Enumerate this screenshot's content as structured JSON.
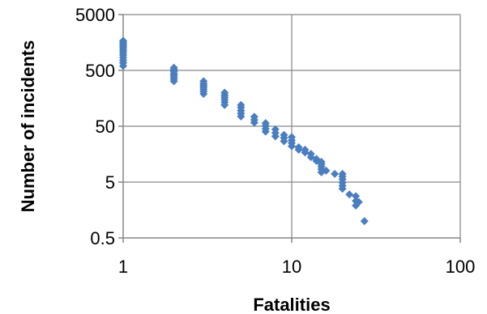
{
  "chart_data": {
    "type": "scatter",
    "xlabel": "Fatalities",
    "ylabel": "Number of incidents",
    "xscale": "log",
    "yscale": "log",
    "xlim": [
      1,
      100
    ],
    "ylim": [
      0.5,
      5000
    ],
    "xticks": [
      "1",
      "10",
      "100"
    ],
    "yticks": [
      "0.5",
      "5",
      "50",
      "500",
      "5000"
    ],
    "xtick_values": [
      1,
      10,
      100
    ],
    "ytick_values": [
      0.5,
      5,
      50,
      500,
      5000
    ],
    "grid": true,
    "marker": "diamond",
    "marker_color": "#4a7ebf",
    "series": [
      {
        "x": [
          1,
          1,
          1,
          1,
          1,
          1,
          1,
          1,
          1,
          1,
          1,
          1,
          1,
          2,
          2,
          2,
          2,
          2,
          2,
          2,
          2,
          3,
          3,
          3,
          3,
          3,
          3,
          3,
          4,
          4,
          4,
          4,
          4,
          4,
          5,
          5,
          5,
          5,
          5,
          6,
          6,
          6,
          7,
          7,
          7,
          7,
          8,
          8,
          8,
          9,
          9,
          9,
          10,
          10,
          10,
          10,
          11,
          11,
          12,
          12,
          13,
          13,
          14,
          14,
          15,
          15,
          15,
          15,
          15,
          16,
          18,
          20,
          20,
          20,
          20,
          20,
          20,
          22,
          24,
          24,
          24,
          25,
          27
        ],
        "y": [
          600,
          680,
          760,
          850,
          940,
          1030,
          1120,
          1200,
          1300,
          1400,
          1500,
          1600,
          1700,
          320,
          350,
          380,
          410,
          440,
          480,
          520,
          560,
          190,
          210,
          230,
          250,
          270,
          290,
          320,
          120,
          135,
          150,
          165,
          180,
          200,
          75,
          85,
          95,
          108,
          120,
          58,
          65,
          74,
          40,
          45,
          51,
          57,
          33,
          38,
          44,
          27,
          31,
          35,
          22,
          25,
          28,
          32,
          19,
          21,
          17,
          19,
          14,
          16,
          12,
          13,
          7.5,
          8.5,
          9.5,
          10.5,
          11.5,
          8,
          7,
          3.8,
          4.3,
          4.9,
          5.6,
          6.3,
          7,
          3,
          1.9,
          2.3,
          2.8,
          2.2,
          1.0
        ]
      }
    ]
  }
}
